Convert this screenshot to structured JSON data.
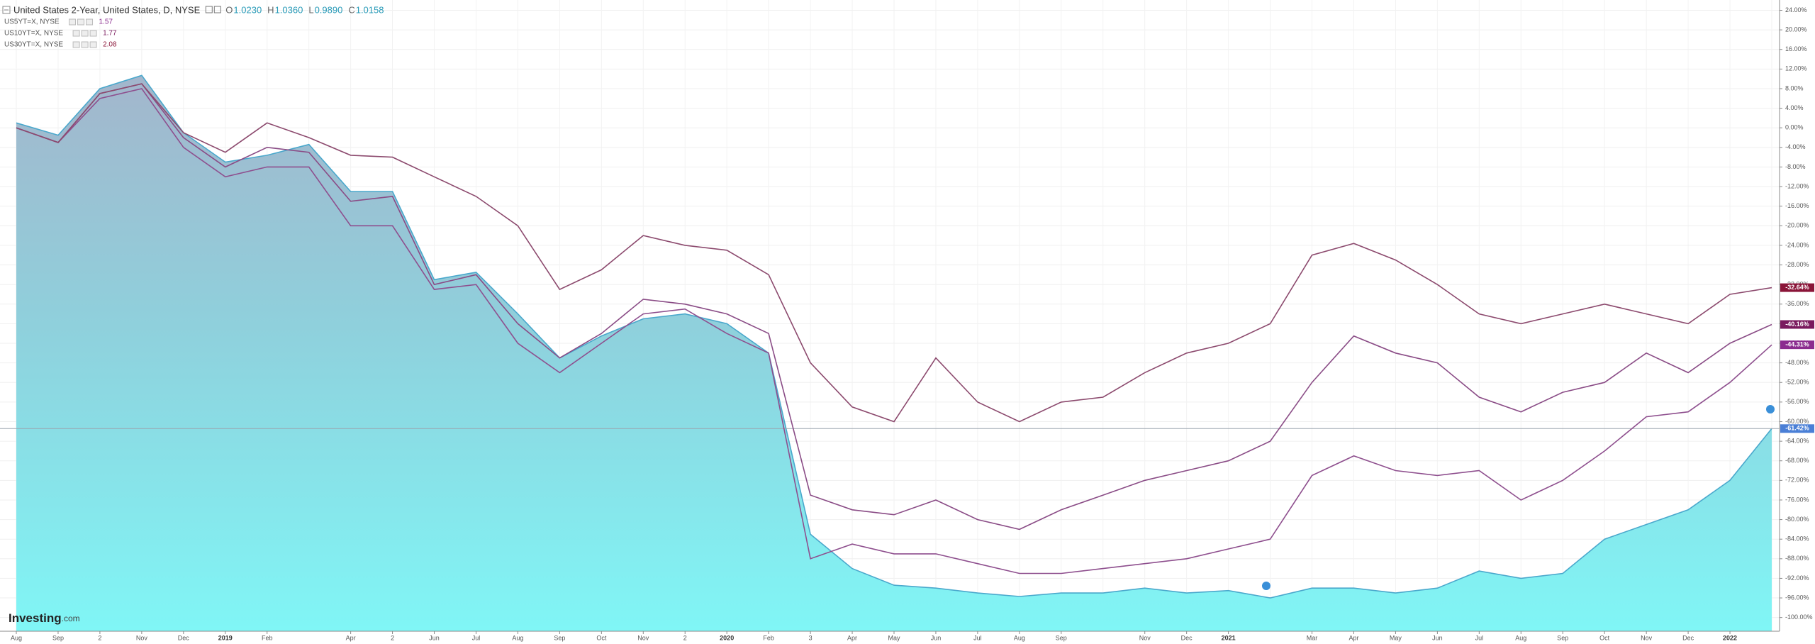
{
  "header": {
    "title": "United States 2-Year, United States, D, NYSE",
    "ohlc": [
      {
        "label": "O",
        "value": "1.0230"
      },
      {
        "label": "H",
        "value": "1.0360"
      },
      {
        "label": "L",
        "value": "0.9890"
      },
      {
        "label": "C",
        "value": "1.0158"
      }
    ]
  },
  "logo": {
    "main": "Investing",
    "suffix": ".com"
  },
  "chart_data": {
    "type": "line",
    "categories": [
      "Aug",
      "Sep",
      "2",
      "Nov",
      "Dec",
      "2019",
      "Feb",
      null,
      "Apr",
      "2",
      "Jun",
      "Jul",
      "Aug",
      "Sep",
      "Oct",
      "Nov",
      "2",
      "2020",
      "Feb",
      "3",
      "Apr",
      "May",
      "Jun",
      "Jul",
      "Aug",
      "Sep",
      null,
      "Nov",
      "Dec",
      "2021",
      null,
      "Mar",
      "Apr",
      "May",
      "Jun",
      "Jul",
      "Aug",
      "Sep",
      "Oct",
      "Nov",
      "Dec",
      "2022",
      null
    ],
    "ylim": [
      -102.8,
      26.1
    ],
    "yticks": [
      {
        "value": 24,
        "label": "24.00%"
      },
      {
        "value": 20,
        "label": "20.00%"
      },
      {
        "value": 16,
        "label": "16.00%"
      },
      {
        "value": 12,
        "label": "12.00%"
      },
      {
        "value": 8,
        "label": "8.00%"
      },
      {
        "value": 4,
        "label": "4.00%"
      },
      {
        "value": 0,
        "label": "0.00%"
      },
      {
        "value": -4,
        "label": "-4.00%"
      },
      {
        "value": -8,
        "label": "-8.00%"
      },
      {
        "value": -12,
        "label": "-12.00%"
      },
      {
        "value": -16,
        "label": "-16.00%"
      },
      {
        "value": -20,
        "label": "-20.00%"
      },
      {
        "value": -24,
        "label": "-24.00%"
      },
      {
        "value": -28,
        "label": "-28.00%"
      },
      {
        "value": -32,
        "label": "-32.00%"
      },
      {
        "value": -36,
        "label": "-36.00%"
      },
      {
        "value": -40,
        "label": "-40.00%"
      },
      {
        "value": -44,
        "label": "-44.00%"
      },
      {
        "value": -48,
        "label": "-48.00%"
      },
      {
        "value": -52,
        "label": "-52.00%"
      },
      {
        "value": -56,
        "label": "-56.00%"
      },
      {
        "value": -60,
        "label": "-60.00%"
      },
      {
        "value": -64,
        "label": "-64.00%"
      },
      {
        "value": -68,
        "label": "-68.00%"
      },
      {
        "value": -72,
        "label": "-72.00%"
      },
      {
        "value": -76,
        "label": "-76.00%"
      },
      {
        "value": -80,
        "label": "-80.00%"
      },
      {
        "value": -84,
        "label": "-84.00%"
      },
      {
        "value": -88,
        "label": "-88.00%"
      },
      {
        "value": -92,
        "label": "-92.00%"
      },
      {
        "value": -96,
        "label": "-96.00%"
      },
      {
        "value": -100,
        "label": "-100.00%"
      }
    ],
    "grid": true,
    "series": [
      {
        "name": "United States 2-Year, United States, D, NYSE",
        "style": "area",
        "color": "#4aa8cc",
        "tag_color": "#4a7fd6",
        "values": [
          1,
          -1.5,
          8,
          10.7,
          -1,
          -7,
          -5.6,
          -3.4,
          -13,
          -13,
          -31,
          -29.5,
          -38,
          -47,
          -42.5,
          -39,
          -38,
          -40,
          -46,
          -83,
          -90,
          -93.4,
          -94,
          -95,
          -95.7,
          -95,
          -95,
          -94,
          -95,
          -94.5,
          -96,
          -94,
          -94,
          -95,
          -94,
          -90.5,
          -92,
          -91,
          -84,
          -81,
          -78,
          -72,
          -61.42
        ],
        "value_labels": [
          null,
          null,
          null,
          null,
          null,
          null,
          null,
          null,
          null,
          null,
          null,
          null,
          null,
          null,
          null,
          null,
          null,
          null,
          null,
          null,
          null,
          null,
          null,
          null,
          null,
          null,
          null,
          null,
          null,
          null,
          null,
          null,
          null,
          null,
          null,
          null,
          null,
          null,
          null,
          null,
          null,
          null,
          "-61.42%"
        ]
      },
      {
        "name": "US5YT=X, NYSE",
        "legend_value": "1.57",
        "style": "line",
        "color": "#8e4f8e",
        "tag_color": "#8b2c8f",
        "values": [
          0,
          -3,
          6,
          8,
          -4,
          -10,
          -8,
          -8,
          -20,
          -20,
          -33,
          -32,
          -44,
          -50,
          -44,
          -38,
          -37,
          -42,
          -46,
          -88,
          -85,
          -87,
          -87,
          -89,
          -91,
          -91,
          -90,
          -89,
          -88,
          -86,
          -84,
          -71,
          -67,
          -70,
          -71,
          -70,
          -76,
          -72,
          -66,
          -59,
          -58,
          -52,
          -44.31
        ],
        "value_labels": [
          null,
          null,
          null,
          null,
          null,
          null,
          null,
          null,
          null,
          null,
          null,
          null,
          null,
          null,
          null,
          null,
          null,
          null,
          null,
          null,
          null,
          null,
          null,
          null,
          null,
          null,
          null,
          null,
          null,
          null,
          null,
          null,
          null,
          null,
          null,
          null,
          null,
          null,
          null,
          null,
          null,
          null,
          "-44.31%"
        ]
      },
      {
        "name": "US10YT=X, NYSE",
        "legend_value": "1.77",
        "style": "line",
        "color": "#8a4c86",
        "tag_color": "#7a1a5e",
        "values": [
          0,
          -3,
          7,
          9,
          -2,
          -8,
          -4,
          -5,
          -15,
          -14,
          -32,
          -30,
          -40,
          -47,
          -42,
          -35,
          -36,
          -38,
          -42,
          -75,
          -78,
          -79,
          -76,
          -80,
          -82,
          -78,
          -75,
          -72,
          -70,
          -68,
          -64,
          -52,
          -42.5,
          -46,
          -48,
          -55,
          -58,
          -54,
          -52,
          -46,
          -50,
          -44,
          -40.16
        ],
        "value_labels": [
          null,
          null,
          null,
          null,
          null,
          null,
          null,
          null,
          null,
          null,
          null,
          null,
          null,
          null,
          null,
          null,
          null,
          null,
          null,
          null,
          null,
          null,
          null,
          null,
          null,
          null,
          null,
          null,
          null,
          null,
          null,
          null,
          null,
          null,
          null,
          null,
          null,
          null,
          null,
          null,
          null,
          null,
          "-40.16%"
        ]
      },
      {
        "name": "US30YT=X, NYSE",
        "legend_value": "2.08",
        "style": "line",
        "color": "#8c4a6e",
        "tag_color": "#8a1538",
        "values": [
          0,
          -3,
          7,
          9,
          -1,
          -5,
          1,
          -2,
          -5.6,
          -6,
          -10,
          -14,
          -20,
          -33,
          -29,
          -22,
          -24,
          -25,
          -30,
          -48,
          -57,
          -60,
          -47,
          -56,
          -60,
          -56,
          -55,
          -50,
          -46,
          -44,
          -40,
          -26,
          -23.6,
          -27,
          -32,
          -38,
          -40,
          -38,
          -36,
          -38,
          -40,
          -34,
          -32.64
        ],
        "value_labels": [
          null,
          null,
          null,
          null,
          null,
          null,
          null,
          null,
          null,
          null,
          null,
          null,
          null,
          null,
          null,
          null,
          null,
          null,
          null,
          null,
          null,
          null,
          null,
          null,
          null,
          null,
          null,
          null,
          null,
          null,
          null,
          null,
          null,
          null,
          null,
          null,
          null,
          null,
          null,
          null,
          null,
          null,
          "-32.64%"
        ]
      }
    ]
  }
}
